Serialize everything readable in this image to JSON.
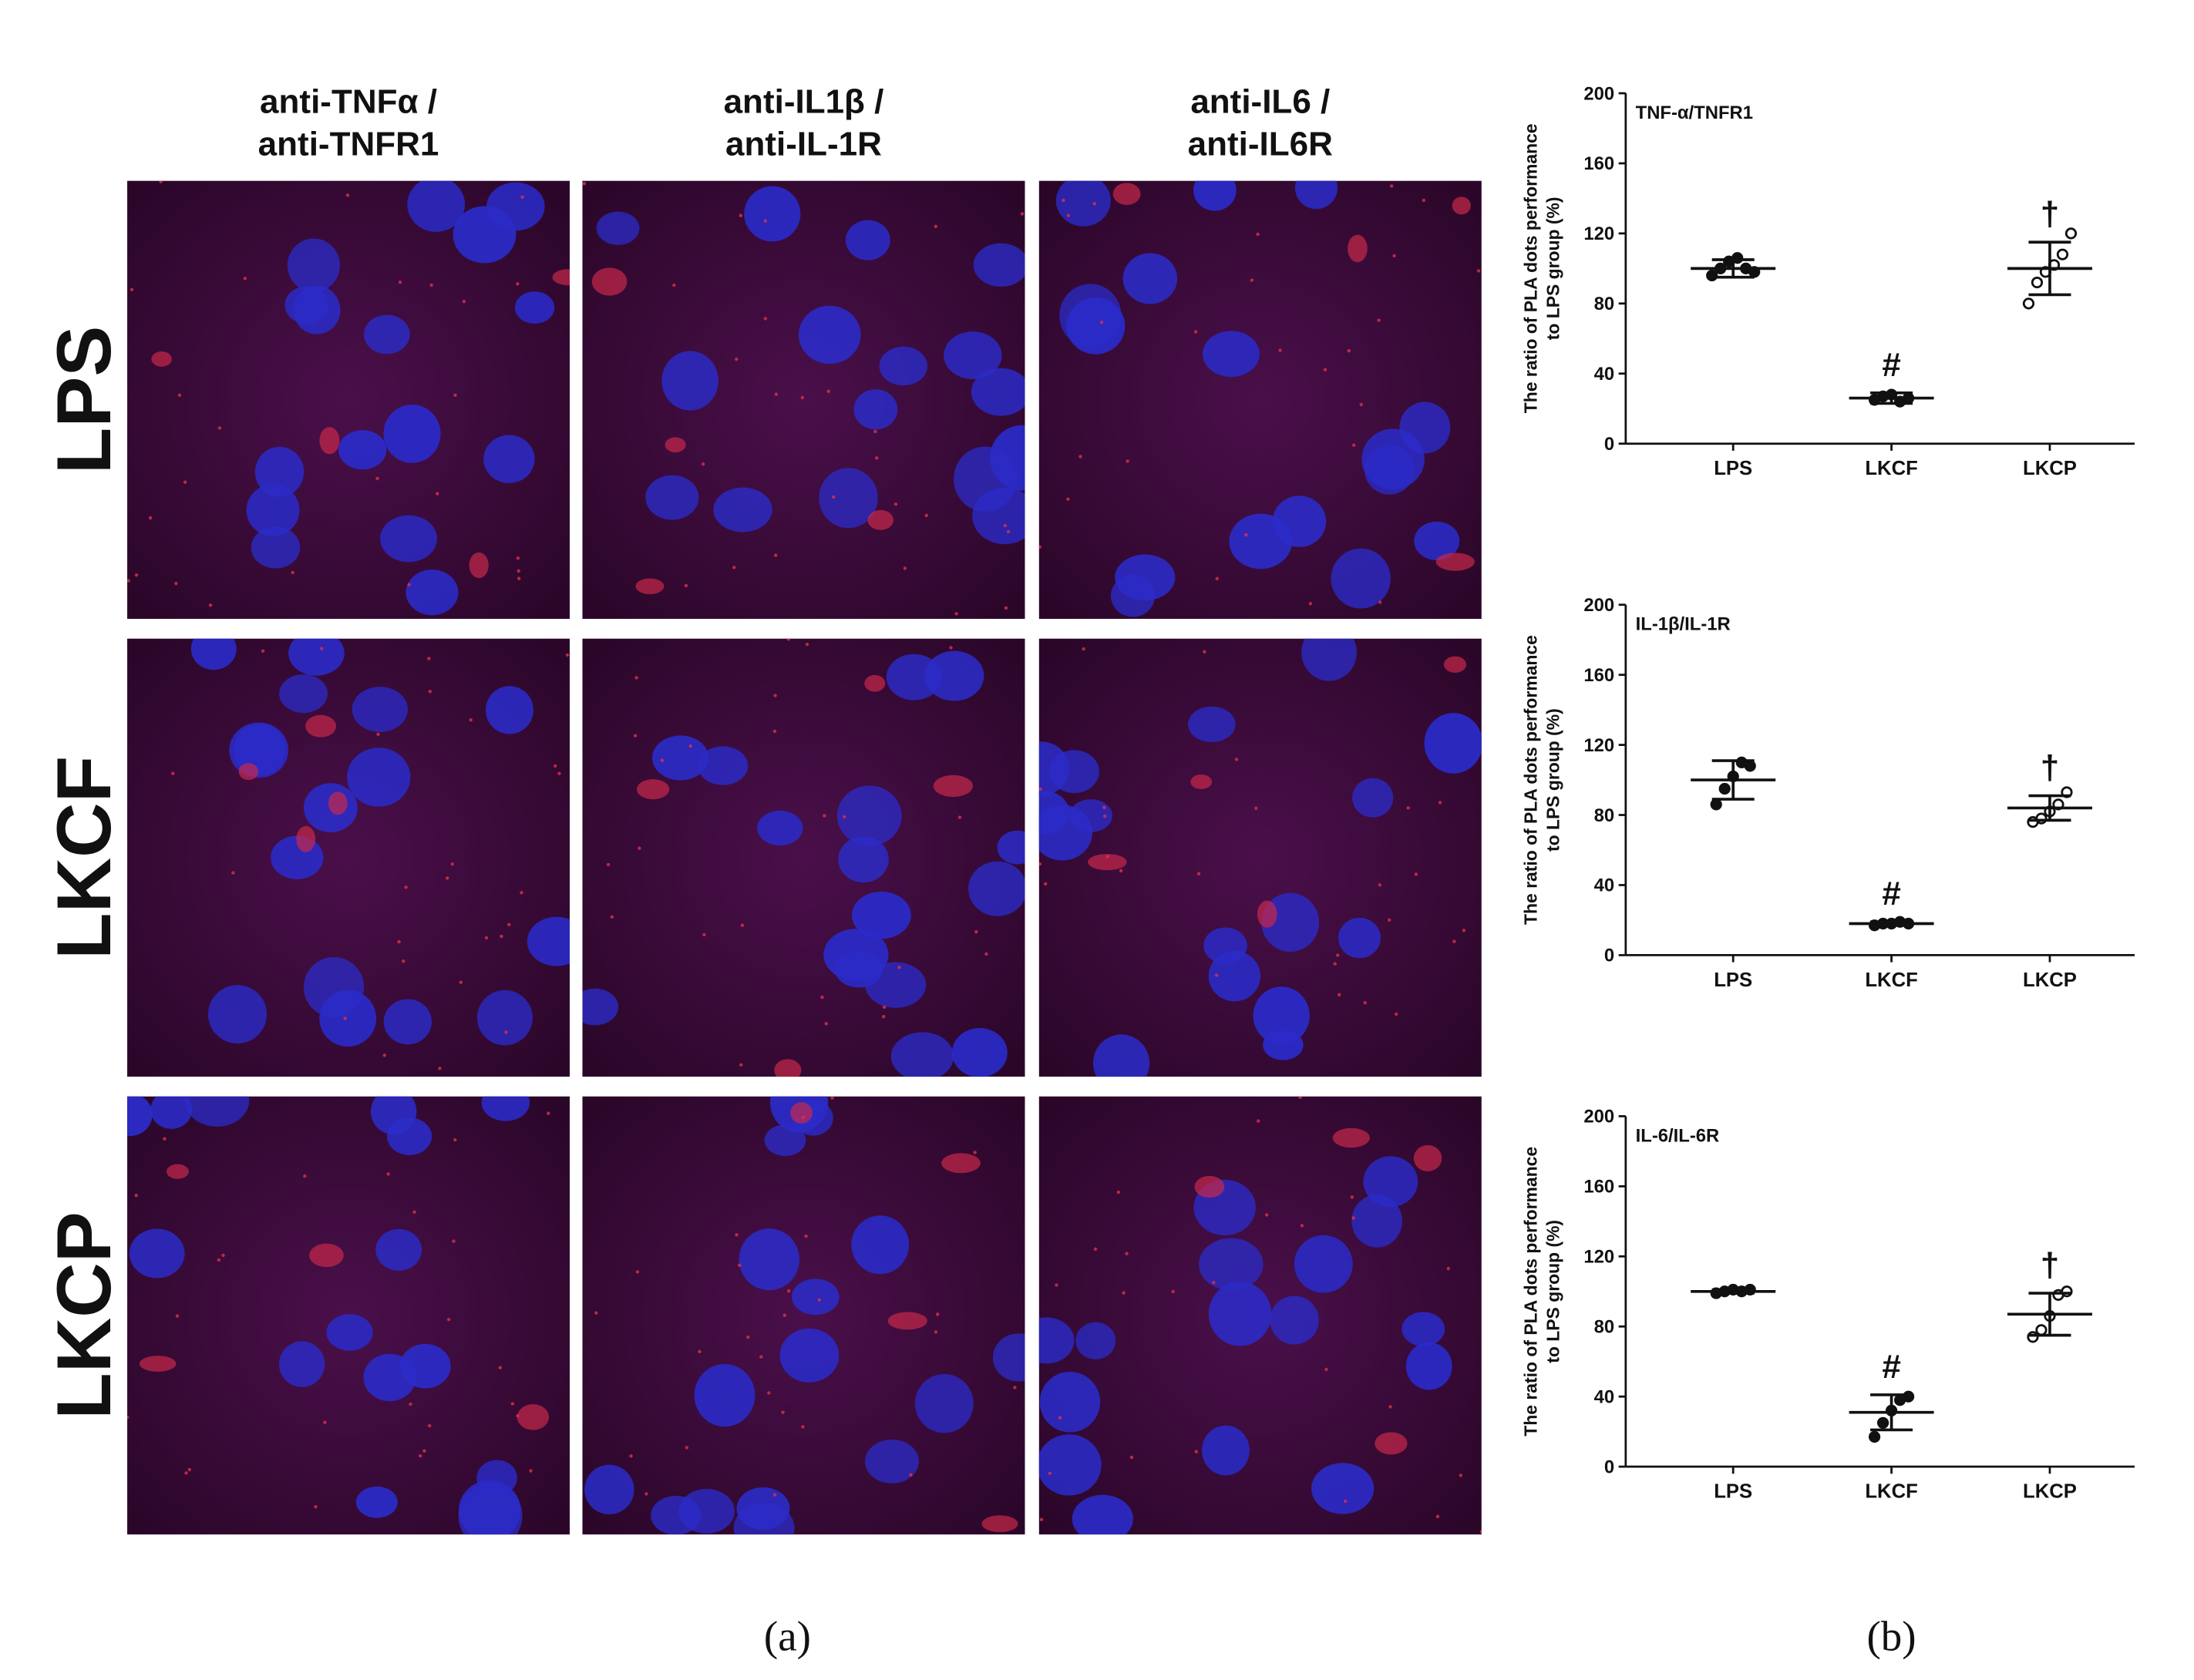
{
  "columns": [
    [
      "anti-TNFα /",
      "anti-TNFR1"
    ],
    [
      "anti-IL1β /",
      "anti-IL-1R"
    ],
    [
      "anti-IL6 /",
      "anti-IL6R"
    ]
  ],
  "rows": [
    "LPS",
    "LKCF",
    "LKCP"
  ],
  "panel_labels": [
    "(a)",
    "(b)"
  ],
  "chart_data": [
    {
      "type": "scatter",
      "title": "TNF-α/TNFR1",
      "ylabel": [
        "The ratio of PLA dots performance",
        "to LPS group (%)"
      ],
      "categories": [
        "LPS",
        "LKCF",
        "LKCP"
      ],
      "points": [
        [
          96,
          100,
          104,
          106,
          100,
          98
        ],
        [
          25,
          27,
          28,
          24,
          26
        ],
        [
          80,
          92,
          98,
          102,
          108,
          120
        ]
      ],
      "means": [
        100,
        26,
        100
      ],
      "sds": [
        5,
        3,
        15
      ],
      "markers": [
        "filled",
        "filled",
        "open"
      ],
      "annotations": [
        null,
        "#",
        "†"
      ],
      "ylim": [
        0,
        200
      ],
      "yticks": [
        0,
        40,
        80,
        120,
        160,
        200
      ],
      "color": "#111111"
    },
    {
      "type": "scatter",
      "title": "IL-1β/IL-1R",
      "ylabel": [
        "The ratio of PLA dots performance",
        "to LPS group (%)"
      ],
      "categories": [
        "LPS",
        "LKCF",
        "LKCP"
      ],
      "points": [
        [
          86,
          95,
          102,
          110,
          108
        ],
        [
          17,
          18,
          18,
          19,
          18
        ],
        [
          76,
          78,
          82,
          86,
          93
        ]
      ],
      "means": [
        100,
        18,
        84
      ],
      "sds": [
        11,
        1,
        7
      ],
      "markers": [
        "filled",
        "filled",
        "open"
      ],
      "annotations": [
        null,
        "#",
        "†"
      ],
      "ylim": [
        0,
        200
      ],
      "yticks": [
        0,
        40,
        80,
        120,
        160,
        200
      ],
      "color": "#111111"
    },
    {
      "type": "scatter",
      "title": "IL-6/IL-6R",
      "ylabel": [
        "The ratio of PLA dots performance",
        "to LPS group (%)"
      ],
      "categories": [
        "LPS",
        "LKCF",
        "LKCP"
      ],
      "points": [
        [
          99,
          100,
          101,
          100,
          101
        ],
        [
          17,
          25,
          32,
          38,
          40
        ],
        [
          74,
          78,
          86,
          98,
          100
        ]
      ],
      "means": [
        100,
        31,
        87
      ],
      "sds": [
        1,
        10,
        12
      ],
      "markers": [
        "filled",
        "filled",
        "open"
      ],
      "annotations": [
        null,
        "#",
        "†"
      ],
      "ylim": [
        0,
        200
      ],
      "yticks": [
        0,
        40,
        80,
        120,
        160,
        200
      ],
      "color": "#111111"
    }
  ]
}
